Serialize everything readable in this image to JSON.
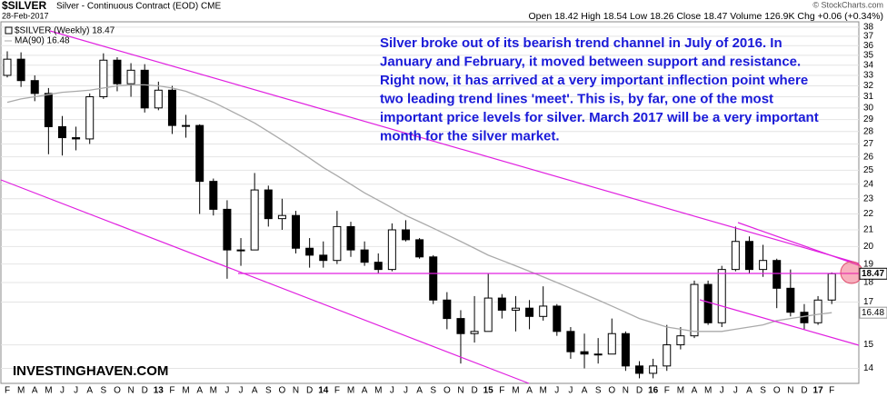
{
  "chart_data": {
    "type": "candlestick",
    "title": "$SILVER",
    "subtitle": "Silver - Continuous Contract (EOD) CME",
    "date": "28-Feb-2017",
    "quote": "Open 18.42 High 18.54 Low 18.26 Close 18.47 Volume 126.9K Chg +0.06 (+0.34%)",
    "credit": "© StockCharts.com",
    "watermark": "INVESTINGHAVEN.COM",
    "last_price_tag": "18.47",
    "ma_tag": "16.48",
    "annotation": [
      "Silver broke out of its bearish trend channel in July of 2016. In",
      "January and February, it moved between support and resistance.",
      "Right now, it has arrived at a very important inflection point where",
      "two leading trend lines 'meet'. This is, by far, one of the most",
      "important price levels for silver. March 2017 will be a very important",
      "month for the silver market."
    ],
    "categories": [
      "F",
      "M",
      "A",
      "M",
      "J",
      "J",
      "A",
      "S",
      "O",
      "N",
      "D",
      "13",
      "F",
      "M",
      "A",
      "M",
      "J",
      "J",
      "A",
      "S",
      "O",
      "N",
      "D",
      "14",
      "F",
      "M",
      "A",
      "M",
      "J",
      "J",
      "A",
      "S",
      "O",
      "N",
      "D",
      "15",
      "F",
      "M",
      "A",
      "M",
      "J",
      "J",
      "A",
      "S",
      "O",
      "N",
      "D",
      "16",
      "F",
      "M",
      "A",
      "M",
      "J",
      "J",
      "A",
      "S",
      "O",
      "N",
      "D",
      "17",
      "F"
    ],
    "series": [
      {
        "name": "$SILVER (Weekly) 18.47",
        "color": "#000000",
        "open": [
          33.0,
          34.6,
          32.5,
          31.3,
          28.4,
          27.5,
          27.4,
          31.0,
          34.5,
          32.2,
          33.5,
          30.0,
          31.6,
          28.5,
          28.5,
          24.2,
          22.3,
          19.8,
          19.8,
          23.6,
          21.7,
          21.9,
          19.9,
          19.5,
          19.2,
          21.2,
          19.8,
          19.1,
          18.7,
          21.0,
          20.4,
          19.4,
          17.1,
          16.2,
          15.5,
          15.6,
          17.2,
          16.6,
          16.7,
          16.3,
          16.8,
          15.6,
          14.7,
          14.6,
          14.6,
          15.5,
          14.1,
          13.8,
          14.1,
          15.0,
          15.4,
          17.9,
          16.0,
          18.7,
          20.3,
          18.7,
          19.2,
          17.7,
          16.5,
          16.0,
          17.1
        ],
        "high": [
          35.4,
          35.3,
          33.0,
          31.8,
          29.3,
          28.4,
          31.3,
          35.2,
          34.8,
          34.2,
          34.1,
          32.4,
          32.0,
          29.4,
          28.6,
          24.4,
          22.9,
          20.5,
          24.8,
          23.9,
          23.0,
          22.2,
          20.5,
          20.3,
          22.2,
          21.5,
          20.3,
          19.6,
          21.4,
          21.6,
          20.5,
          19.5,
          17.5,
          16.6,
          17.3,
          18.5,
          17.4,
          17.3,
          17.1,
          17.8,
          16.9,
          15.8,
          15.5,
          15.3,
          16.2,
          15.6,
          14.3,
          14.4,
          15.9,
          15.8,
          18.1,
          18.1,
          18.9,
          21.2,
          20.6,
          20.1,
          19.3,
          18.7,
          16.9,
          17.3,
          18.54
        ],
        "low": [
          32.8,
          31.9,
          30.6,
          26.2,
          26.1,
          26.5,
          27.0,
          30.8,
          31.5,
          31.0,
          29.6,
          29.8,
          27.8,
          27.5,
          22.0,
          21.9,
          18.2,
          18.9,
          19.8,
          21.2,
          21.0,
          19.6,
          18.8,
          18.8,
          19.0,
          19.4,
          18.9,
          18.5,
          18.6,
          20.3,
          19.3,
          16.9,
          15.7,
          14.2,
          15.1,
          15.6,
          16.2,
          15.6,
          15.7,
          16.1,
          15.4,
          14.4,
          14.0,
          14.2,
          14.6,
          13.9,
          13.6,
          13.6,
          13.9,
          14.8,
          15.3,
          15.9,
          15.8,
          18.6,
          18.5,
          18.3,
          16.7,
          16.3,
          15.7,
          15.9,
          16.9
        ],
        "close": [
          34.6,
          32.5,
          31.3,
          28.4,
          27.5,
          27.4,
          31.0,
          34.5,
          32.2,
          33.5,
          30.0,
          31.6,
          28.5,
          28.5,
          24.2,
          22.3,
          19.8,
          19.8,
          23.6,
          21.7,
          21.9,
          19.9,
          19.5,
          19.2,
          21.2,
          19.8,
          19.1,
          18.7,
          21.0,
          20.4,
          19.4,
          17.1,
          16.2,
          15.5,
          15.6,
          17.2,
          16.6,
          16.7,
          16.3,
          16.8,
          15.6,
          14.7,
          14.6,
          14.6,
          15.5,
          14.1,
          13.8,
          14.1,
          15.0,
          15.4,
          17.9,
          16.0,
          18.7,
          20.3,
          18.7,
          19.2,
          17.7,
          16.5,
          16.0,
          17.1,
          18.47
        ]
      },
      {
        "name": "MA(90) 16.48",
        "color": "#aaaaaa",
        "values": [
          30.5,
          30.8,
          31.0,
          31.2,
          31.4,
          31.5,
          31.6,
          31.8,
          32.0,
          32.1,
          32.1,
          32.0,
          31.8,
          31.5,
          31.0,
          30.5,
          29.9,
          29.3,
          28.7,
          28.0,
          27.3,
          26.6,
          25.9,
          25.2,
          24.6,
          24.0,
          23.4,
          22.9,
          22.4,
          21.9,
          21.5,
          21.1,
          20.7,
          20.3,
          19.9,
          19.5,
          19.2,
          18.9,
          18.6,
          18.3,
          18.0,
          17.7,
          17.4,
          17.1,
          16.8,
          16.5,
          16.2,
          16.0,
          15.8,
          15.7,
          15.6,
          15.6,
          15.6,
          15.7,
          15.8,
          15.9,
          16.1,
          16.2,
          16.3,
          16.4,
          16.48
        ]
      }
    ],
    "ylim": [
      13.4,
      38.6
    ],
    "yticks": [
      14,
      15,
      17,
      18,
      19,
      20,
      21,
      22,
      23,
      24,
      25,
      26,
      27,
      28,
      29,
      30,
      31,
      32,
      33,
      34,
      35,
      36,
      37,
      38
    ],
    "log_scale": true,
    "grid": true
  }
}
